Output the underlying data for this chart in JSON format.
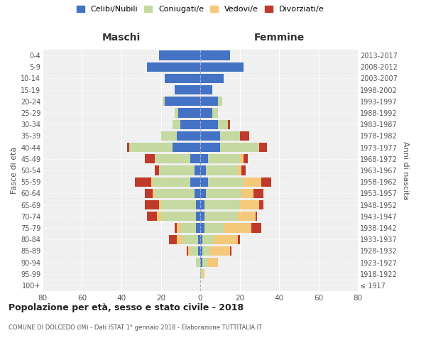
{
  "age_groups": [
    "100+",
    "95-99",
    "90-94",
    "85-89",
    "80-84",
    "75-79",
    "70-74",
    "65-69",
    "60-64",
    "55-59",
    "50-54",
    "45-49",
    "40-44",
    "35-39",
    "30-34",
    "25-29",
    "20-24",
    "15-19",
    "10-14",
    "5-9",
    "0-4"
  ],
  "birth_years": [
    "≤ 1917",
    "1918-1922",
    "1923-1927",
    "1928-1932",
    "1933-1937",
    "1938-1942",
    "1943-1947",
    "1948-1952",
    "1953-1957",
    "1958-1962",
    "1963-1967",
    "1968-1972",
    "1973-1977",
    "1978-1982",
    "1983-1987",
    "1988-1992",
    "1993-1997",
    "1998-2002",
    "2003-2007",
    "2008-2012",
    "2013-2017"
  ],
  "maschi": {
    "celibi": [
      0,
      0,
      0,
      1,
      1,
      2,
      2,
      2,
      3,
      5,
      3,
      5,
      14,
      12,
      10,
      11,
      18,
      13,
      18,
      27,
      21
    ],
    "coniugati": [
      0,
      0,
      2,
      4,
      8,
      8,
      18,
      18,
      20,
      19,
      18,
      18,
      22,
      8,
      4,
      2,
      1,
      0,
      0,
      0,
      0
    ],
    "vedovi": [
      0,
      0,
      0,
      1,
      3,
      2,
      2,
      1,
      1,
      1,
      0,
      0,
      0,
      0,
      0,
      0,
      0,
      0,
      0,
      0,
      0
    ],
    "divorziati": [
      0,
      0,
      0,
      1,
      4,
      1,
      5,
      7,
      4,
      8,
      2,
      5,
      1,
      0,
      0,
      0,
      0,
      0,
      0,
      0,
      0
    ]
  },
  "femmine": {
    "nubili": [
      0,
      0,
      1,
      1,
      1,
      2,
      2,
      2,
      3,
      4,
      3,
      4,
      10,
      10,
      9,
      6,
      9,
      6,
      12,
      22,
      15
    ],
    "coniugate": [
      0,
      1,
      3,
      4,
      6,
      10,
      17,
      18,
      18,
      18,
      16,
      16,
      20,
      10,
      5,
      3,
      2,
      0,
      0,
      0,
      0
    ],
    "vedove": [
      0,
      1,
      5,
      10,
      12,
      14,
      9,
      10,
      6,
      9,
      2,
      2,
      0,
      0,
      0,
      0,
      0,
      0,
      0,
      0,
      0
    ],
    "divorziate": [
      0,
      0,
      0,
      1,
      1,
      5,
      1,
      2,
      5,
      5,
      2,
      2,
      4,
      5,
      1,
      0,
      0,
      0,
      0,
      0,
      0
    ]
  },
  "colors": {
    "celibi": "#4472C4",
    "coniugati": "#c5d9a0",
    "vedovi": "#f5c97a",
    "divorziati": "#c0392b"
  },
  "xlim": 80,
  "title": "Popolazione per età, sesso e stato civile - 2018",
  "subtitle": "COMUNE DI DOLCEDO (IM) - Dati ISTAT 1° gennaio 2018 - Elaborazione TUTTITALIA.IT",
  "legend_labels": [
    "Celibi/Nubili",
    "Coniugati/e",
    "Vedovi/e",
    "Divorziati/e"
  ],
  "left_label": "Maschi",
  "right_label": "Femmine",
  "ylabel_left": "Fasce di età",
  "ylabel_right": "Anni di nascita"
}
